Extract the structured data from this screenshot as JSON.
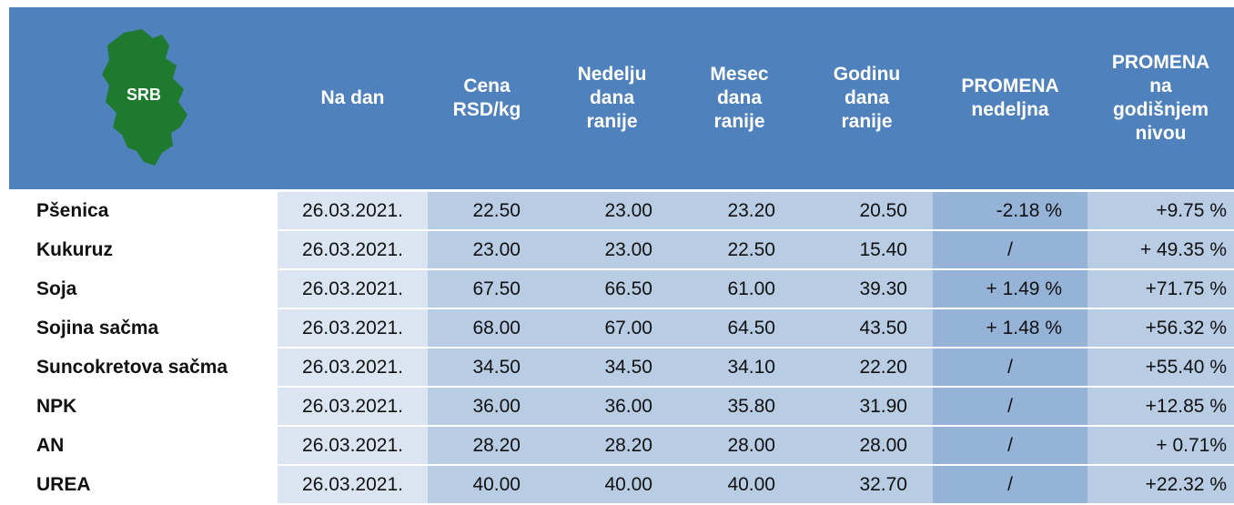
{
  "table": {
    "logo": "SRB",
    "header": [
      "Na dan",
      "Cena\nRSD/kg",
      "Nedelju\ndana\nranije",
      "Mesec\ndana\nranije",
      "Godinu\ndana\nranije",
      "PROMENA\nnedeljna",
      "PROMENA\nna\ngodišnjem\nnivou"
    ],
    "rows": [
      [
        "Pšenica",
        "26.03.2021.",
        "22.50",
        "23.00",
        "23.20",
        "20.50",
        "-2.18 %",
        "+9.75 %"
      ],
      [
        "Kukuruz",
        "26.03.2021.",
        "23.00",
        "23.00",
        "22.50",
        "15.40",
        "/",
        "+ 49.35 %"
      ],
      [
        "Soja",
        "26.03.2021.",
        "67.50",
        "66.50",
        "61.00",
        "39.30",
        "+ 1.49 %",
        "+71.75 %"
      ],
      [
        "Sojina sačma",
        "26.03.2021.",
        "68.00",
        "67.00",
        "64.50",
        "43.50",
        "+ 1.48 %",
        "+56.32 %"
      ],
      [
        "Suncokretova sačma",
        "26.03.2021.",
        "34.50",
        "34.50",
        "34.10",
        "22.20",
        "/",
        "+55.40 %"
      ],
      [
        "NPK",
        "26.03.2021.",
        "36.00",
        "36.00",
        "35.80",
        "31.90",
        "/",
        "+12.85 %"
      ],
      [
        "AN",
        "26.03.2021.",
        "28.20",
        "28.20",
        "28.00",
        "28.00",
        "/",
        "+ 0.71%"
      ],
      [
        "UREA",
        "26.03.2021.",
        "40.00",
        "40.00",
        "40.00",
        "32.70",
        "/",
        "+22.32 %"
      ]
    ]
  }
}
